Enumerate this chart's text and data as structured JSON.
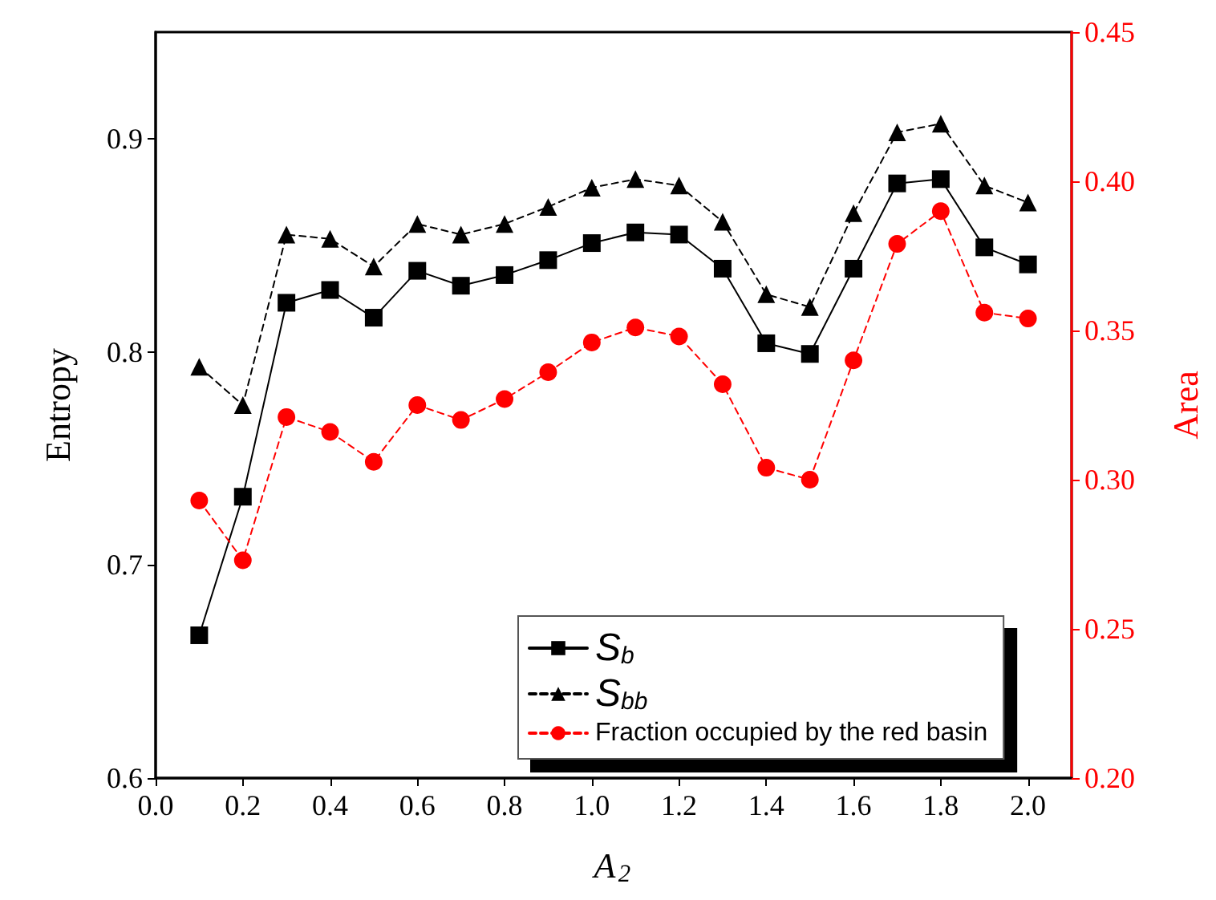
{
  "chart_data": {
    "type": "line",
    "xlabel": "A$_{2}$",
    "ylabel": "Entropy",
    "y2label": "Area",
    "x": [
      0.1,
      0.2,
      0.3,
      0.4,
      0.5,
      0.6,
      0.7,
      0.8,
      0.9,
      1.0,
      1.1,
      1.2,
      1.3,
      1.4,
      1.5,
      1.6,
      1.7,
      1.8,
      1.9,
      2.0
    ],
    "series": [
      {
        "name": "S$_{b}$",
        "color": "#000000",
        "marker": "square",
        "line_style": "solid",
        "values": [
          0.667,
          0.732,
          0.823,
          0.829,
          0.816,
          0.838,
          0.831,
          0.836,
          0.843,
          0.851,
          0.856,
          0.855,
          0.839,
          0.804,
          0.799,
          0.839,
          0.879,
          0.881,
          0.849,
          0.841
        ]
      },
      {
        "name": "S$_{bb}$",
        "color": "#000000",
        "marker": "triangle",
        "line_style": "dashed",
        "values": [
          0.793,
          0.775,
          0.855,
          0.853,
          0.84,
          0.86,
          0.855,
          0.86,
          0.868,
          0.877,
          0.881,
          0.878,
          0.861,
          0.827,
          0.821,
          0.865,
          0.903,
          0.907,
          0.878,
          0.87
        ]
      },
      {
        "name": "Fraction occupied by the red basin",
        "color": "#ff0000",
        "marker": "circle",
        "line_style": "dashed",
        "axis": "y2",
        "values": [
          0.293,
          0.273,
          0.321,
          0.316,
          0.306,
          0.325,
          0.32,
          0.327,
          0.336,
          0.346,
          0.351,
          0.348,
          0.332,
          0.304,
          0.3,
          0.34,
          0.379,
          0.39,
          0.356,
          0.354
        ]
      }
    ],
    "xlim": [
      0,
      2.1
    ],
    "xticks": [
      {
        "value": 0,
        "label": "0.0"
      },
      {
        "value": 0.2,
        "label": "0.2"
      },
      {
        "value": 0.4,
        "label": "0.4"
      },
      {
        "value": 0.6,
        "label": "0.6"
      },
      {
        "value": 0.8,
        "label": "0.8"
      },
      {
        "value": 1.0,
        "label": "1.0"
      },
      {
        "value": 1.2,
        "label": "1.2"
      },
      {
        "value": 1.4,
        "label": "1.4"
      },
      {
        "value": 1.6,
        "label": "1.6"
      },
      {
        "value": 1.8,
        "label": "1.8"
      },
      {
        "value": 2.0,
        "label": "2.0"
      }
    ],
    "ylim": [
      0.6,
      0.95
    ],
    "yticks": [
      0.6,
      0.7,
      0.8,
      0.9
    ],
    "y2lim": [
      0.2,
      0.45
    ],
    "y2ticks": [
      {
        "value": 0.2,
        "label": "0.20"
      },
      {
        "value": 0.25,
        "label": "0.25"
      },
      {
        "value": 0.3,
        "label": "0.30"
      },
      {
        "value": 0.35,
        "label": "0.35"
      },
      {
        "value": 0.4,
        "label": "0.40"
      },
      {
        "value": 0.45,
        "label": "0.45"
      }
    ],
    "grid": false,
    "legend": "bottom"
  }
}
